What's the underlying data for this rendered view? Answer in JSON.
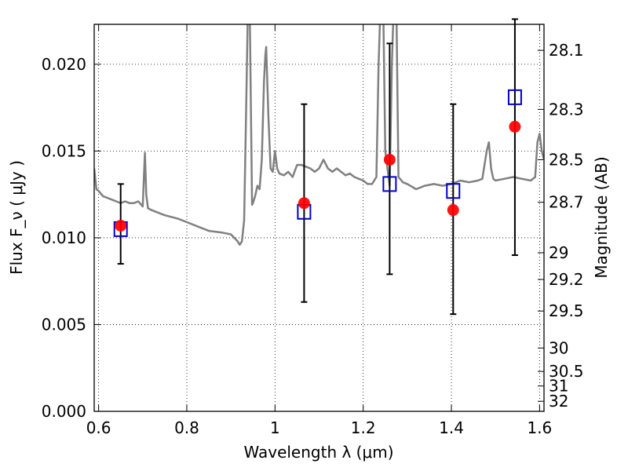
{
  "chart_data": {
    "type": "scatter",
    "title": "",
    "xlabel": "Wavelength  λ (μm)",
    "ylabel": "Flux  F_ν  ( μJy )",
    "ylabel_right": "Magnitude (AB)",
    "xlim": [
      0.59,
      1.61
    ],
    "ylim": [
      0.0,
      0.0223
    ],
    "grid": true,
    "x_ticks": [
      0.6,
      0.8,
      1.0,
      1.2,
      1.4,
      1.6
    ],
    "x_tick_labels": [
      "0.6",
      "0.8",
      "1",
      "1.2",
      "1.4",
      "1.6"
    ],
    "y_ticks": [
      0.0,
      0.005,
      0.01,
      0.015,
      0.02
    ],
    "y_tick_labels": [
      "0.000",
      "0.005",
      "0.010",
      "0.015",
      "0.020"
    ],
    "right_axis_ticks": [
      {
        "label": "28.1",
        "flux": 0.0208
      },
      {
        "label": "28.3",
        "flux": 0.0174
      },
      {
        "label": "28.5",
        "flux": 0.0145
      },
      {
        "label": "28.7",
        "flux": 0.01205
      },
      {
        "label": "29",
        "flux": 0.00914
      },
      {
        "label": "29.2",
        "flux": 0.0076
      },
      {
        "label": "29.5",
        "flux": 0.00578
      },
      {
        "label": "30",
        "flux": 0.00365
      },
      {
        "label": "30.5",
        "flux": 0.0023
      },
      {
        "label": "31",
        "flux": 0.00146
      },
      {
        "label": "32",
        "flux": 0.00058
      }
    ],
    "series": [
      {
        "kind": "line",
        "color": "#808080",
        "x": [
          0.59,
          0.595,
          0.6,
          0.61,
          0.62,
          0.63,
          0.64,
          0.65,
          0.66,
          0.67,
          0.68,
          0.69,
          0.7,
          0.705,
          0.708,
          0.712,
          0.72,
          0.73,
          0.75,
          0.78,
          0.8,
          0.83,
          0.85,
          0.88,
          0.9,
          0.915,
          0.92,
          0.925,
          0.93,
          0.935,
          0.938,
          0.94,
          0.943,
          0.948,
          0.95,
          0.955,
          0.96,
          0.965,
          0.97,
          0.975,
          0.978,
          0.98,
          0.985,
          0.99,
          0.995,
          1.0,
          1.005,
          1.01,
          1.02,
          1.03,
          1.04,
          1.05,
          1.06,
          1.07,
          1.08,
          1.09,
          1.1,
          1.11,
          1.12,
          1.13,
          1.14,
          1.15,
          1.16,
          1.17,
          1.18,
          1.19,
          1.2,
          1.21,
          1.22,
          1.23,
          1.235,
          1.24,
          1.245,
          1.25,
          1.26,
          1.265,
          1.27,
          1.275,
          1.28,
          1.29,
          1.3,
          1.32,
          1.34,
          1.36,
          1.38,
          1.4,
          1.42,
          1.44,
          1.46,
          1.47,
          1.48,
          1.485,
          1.49,
          1.495,
          1.5,
          1.52,
          1.54,
          1.56,
          1.58,
          1.59,
          1.595,
          1.6,
          1.605,
          1.61
        ],
        "y": [
          0.014,
          0.0128,
          0.0127,
          0.0124,
          0.0123,
          0.0122,
          0.0121,
          0.012,
          0.0121,
          0.012,
          0.012,
          0.0121,
          0.0118,
          0.0149,
          0.0125,
          0.0117,
          0.0116,
          0.0115,
          0.0113,
          0.0111,
          0.0109,
          0.0106,
          0.0104,
          0.0103,
          0.0102,
          0.0098,
          0.0096,
          0.0098,
          0.011,
          0.018,
          0.0225,
          0.024,
          0.0225,
          0.0119,
          0.012,
          0.0124,
          0.013,
          0.0128,
          0.0145,
          0.019,
          0.0205,
          0.021,
          0.017,
          0.014,
          0.0138,
          0.015,
          0.014,
          0.0137,
          0.0136,
          0.0138,
          0.0135,
          0.0142,
          0.0142,
          0.0141,
          0.014,
          0.0138,
          0.014,
          0.0145,
          0.014,
          0.0138,
          0.014,
          0.0138,
          0.0136,
          0.0137,
          0.0135,
          0.0134,
          0.0133,
          0.0131,
          0.0131,
          0.0135,
          0.02,
          0.024,
          0.024,
          0.015,
          0.013,
          0.02,
          0.024,
          0.024,
          0.0135,
          0.0132,
          0.0131,
          0.0128,
          0.013,
          0.0131,
          0.013,
          0.0131,
          0.0133,
          0.0132,
          0.0133,
          0.0134,
          0.015,
          0.0155,
          0.014,
          0.0134,
          0.0133,
          0.0134,
          0.0135,
          0.0134,
          0.0133,
          0.0135,
          0.0155,
          0.016,
          0.015,
          0.0145
        ]
      },
      {
        "kind": "errorbar",
        "color": "#000000",
        "x": [
          0.65,
          1.066,
          1.26,
          1.404,
          1.544
        ],
        "lower": [
          0.0085,
          0.0063,
          0.0079,
          0.0056,
          0.009
        ],
        "upper": [
          0.0131,
          0.0177,
          0.0212,
          0.0177,
          0.0226
        ]
      },
      {
        "kind": "model_squares",
        "color": "#0000cc",
        "x": [
          0.65,
          1.066,
          1.26,
          1.404,
          1.544
        ],
        "y": [
          0.0105,
          0.0115,
          0.0131,
          0.0127,
          0.0181
        ]
      },
      {
        "kind": "observed_circles",
        "color": "#ff0000",
        "x": [
          0.65,
          1.066,
          1.26,
          1.404,
          1.544
        ],
        "y": [
          0.0107,
          0.012,
          0.0145,
          0.0116,
          0.0164
        ]
      }
    ]
  }
}
